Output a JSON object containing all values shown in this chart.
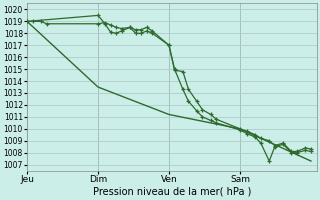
{
  "xlabel": "Pression niveau de la mer( hPa )",
  "bg_color": "#cceee8",
  "grid_color": "#b0ccc8",
  "line_color": "#2d6a2d",
  "vline_color": "#888888",
  "ylim": [
    1006.5,
    1020.5
  ],
  "xlim": [
    0.0,
    1.04
  ],
  "yticks": [
    1007,
    1008,
    1009,
    1010,
    1011,
    1012,
    1013,
    1014,
    1015,
    1016,
    1017,
    1018,
    1019,
    1020
  ],
  "day_labels": [
    "Jeu",
    "Dim",
    "Ven",
    "Sam"
  ],
  "day_positions": [
    0.0,
    0.255,
    0.51,
    0.765
  ],
  "vline_positions": [
    0.255,
    0.51,
    0.765
  ],
  "series1_x": [
    0.0,
    0.02,
    0.05,
    0.07,
    0.255,
    0.28,
    0.3,
    0.32,
    0.34,
    0.37,
    0.39,
    0.41,
    0.43,
    0.45,
    0.51,
    0.53,
    0.56,
    0.58,
    0.61,
    0.63,
    0.66,
    0.68,
    0.765,
    0.79,
    0.82,
    0.84,
    0.87,
    0.89,
    0.92,
    0.95,
    0.97,
    1.0,
    1.02
  ],
  "series1_y": [
    1019.0,
    1019.0,
    1019.0,
    1018.8,
    1018.8,
    1018.9,
    1018.7,
    1018.5,
    1018.4,
    1018.5,
    1018.3,
    1018.3,
    1018.5,
    1018.2,
    1017.0,
    1014.9,
    1014.8,
    1013.3,
    1012.3,
    1011.6,
    1011.2,
    1010.8,
    1010.0,
    1009.8,
    1009.5,
    1009.2,
    1009.0,
    1008.6,
    1008.8,
    1008.1,
    1008.1,
    1008.4,
    1008.3
  ],
  "series2_x": [
    0.0,
    0.255,
    0.28,
    0.3,
    0.32,
    0.34,
    0.37,
    0.39,
    0.41,
    0.43,
    0.45,
    0.51,
    0.53,
    0.56,
    0.58,
    0.61,
    0.63,
    0.66,
    0.68,
    0.765,
    0.79,
    0.82,
    0.84,
    0.87,
    0.89,
    0.92,
    0.95,
    0.97,
    1.0,
    1.02
  ],
  "series2_y": [
    1019.0,
    1019.5,
    1018.8,
    1018.1,
    1018.0,
    1018.2,
    1018.5,
    1018.0,
    1018.0,
    1018.2,
    1018.0,
    1017.0,
    1015.0,
    1013.3,
    1012.3,
    1011.5,
    1011.0,
    1010.7,
    1010.5,
    1009.9,
    1009.6,
    1009.3,
    1008.8,
    1007.3,
    1008.5,
    1008.7,
    1008.0,
    1008.0,
    1008.2,
    1008.1
  ],
  "series3_x": [
    0.0,
    0.255,
    0.51,
    0.765,
    1.02
  ],
  "series3_y": [
    1019.0,
    1013.5,
    1011.2,
    1010.0,
    1007.3
  ]
}
